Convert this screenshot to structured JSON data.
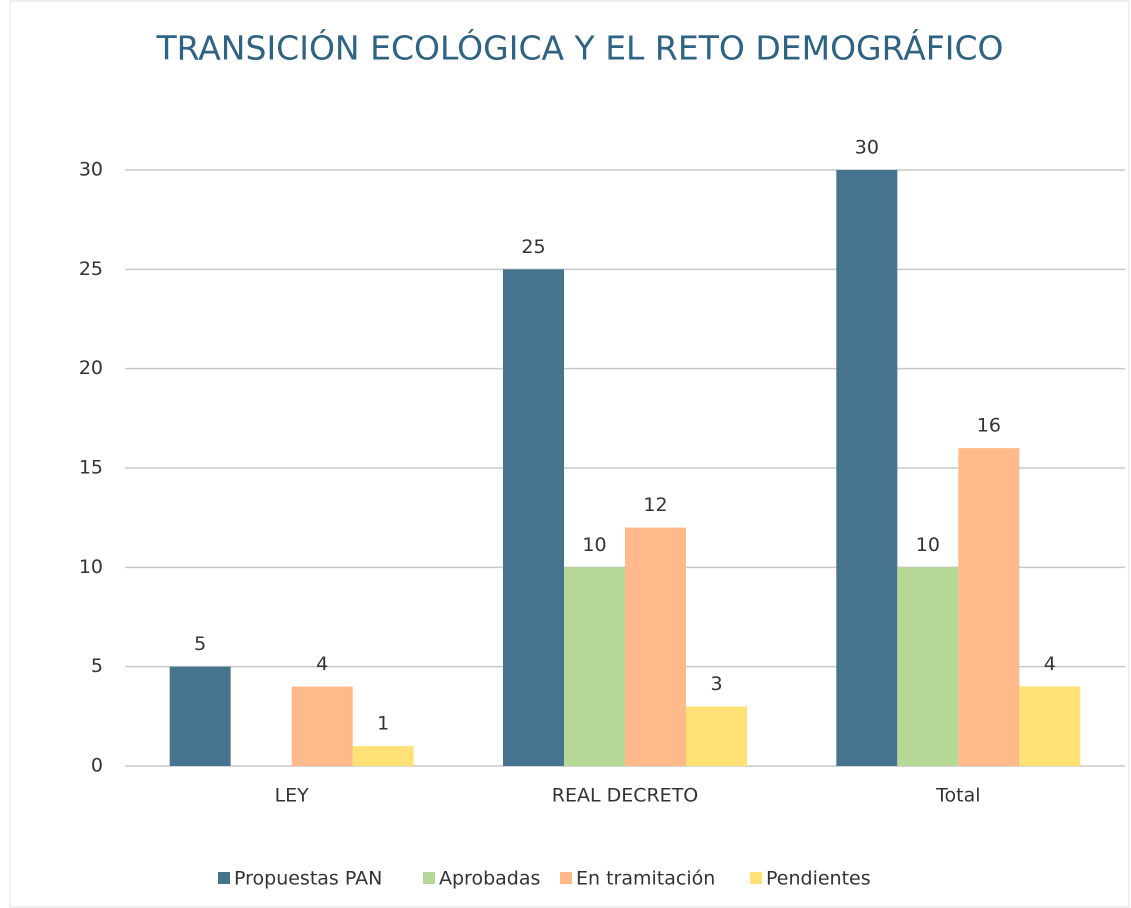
{
  "chart_data": {
    "type": "bar",
    "title": "TRANSICIÓN ECOLÓGICA Y EL RETO DEMOGRÁFICO",
    "categories": [
      "LEY",
      "REAL DECRETO",
      "Total"
    ],
    "series": [
      {
        "name": "Propuestas PAN",
        "color": "#46748f",
        "values": [
          5,
          25,
          30
        ]
      },
      {
        "name": "Aprobadas",
        "color": "#b5d897",
        "values": [
          0,
          10,
          10
        ]
      },
      {
        "name": "En tramitación",
        "color": "#ffb98a",
        "values": [
          4,
          12,
          16
        ]
      },
      {
        "name": "Pendientes",
        "color": "#ffe175",
        "values": [
          1,
          3,
          4
        ]
      }
    ],
    "ylim": [
      0,
      30
    ],
    "yticks": [
      0,
      5,
      10,
      15,
      20,
      25,
      30
    ],
    "grid": true,
    "legend": "bottom"
  }
}
